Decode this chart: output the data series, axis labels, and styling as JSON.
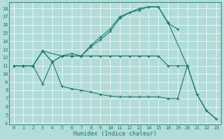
{
  "xlabel": "Humidex (Indice chaleur)",
  "bg_color": "#b2dcd9",
  "line_color": "#1a7a6e",
  "grid_color": "#ffffff",
  "curves": [
    {
      "x": [
        0,
        1,
        2,
        3,
        5,
        6,
        7,
        8,
        9,
        10,
        11,
        12,
        13,
        14,
        15,
        18,
        19
      ],
      "y": [
        11,
        11,
        11,
        12.8,
        12.2,
        12.5,
        12.2,
        13.5,
        14.5,
        15.5,
        17.0,
        17.5,
        18.0,
        18.2,
        18.2,
        16.2,
        15.5
      ]
    },
    {
      "x": [
        0,
        1,
        2,
        3,
        4,
        5,
        6,
        7,
        8,
        9,
        10,
        11,
        12,
        13,
        14,
        15,
        18,
        20
      ],
      "y": [
        11,
        11,
        11,
        12.8,
        11.5,
        12.2,
        12.2,
        12.2,
        13.3,
        14.2,
        15.2,
        16.8,
        17.5,
        17.8,
        18.2,
        18.2,
        16.3,
        11.0
      ]
    },
    {
      "x": [
        0,
        1,
        2,
        3,
        4,
        5,
        6,
        7,
        8,
        9,
        10,
        11,
        12,
        13,
        14,
        15,
        18,
        19,
        20,
        21,
        22,
        23
      ],
      "y": [
        11,
        11,
        11,
        12.8,
        11.5,
        12.2,
        12.2,
        12.2,
        12.2,
        12.2,
        12.2,
        12.2,
        12.2,
        12.2,
        12.2,
        12.2,
        11.0,
        11.0,
        11.0,
        7.5,
        5.5,
        4.5
      ]
    },
    {
      "x": [
        0,
        1,
        2,
        3,
        4,
        5,
        6,
        7,
        8,
        9,
        10,
        11,
        12,
        13,
        14,
        15,
        18,
        19,
        20,
        21,
        22,
        23
      ],
      "y": [
        11,
        11,
        11,
        8.8,
        11.5,
        8.5,
        8.2,
        8.0,
        7.8,
        7.5,
        7.3,
        7.2,
        7.2,
        7.2,
        7.2,
        7.2,
        7.0,
        7.0,
        11.0,
        7.5,
        5.5,
        4.5
      ]
    }
  ],
  "xticks": [
    0,
    1,
    2,
    3,
    4,
    5,
    6,
    7,
    8,
    9,
    10,
    11,
    12,
    13,
    14,
    15,
    18,
    19,
    20,
    21,
    22,
    23
  ],
  "yticks": [
    4,
    5,
    6,
    7,
    8,
    9,
    10,
    11,
    12,
    13,
    14,
    15,
    16,
    17,
    18
  ],
  "xlim": [
    -0.5,
    23.5
  ],
  "ylim": [
    3.8,
    18.8
  ]
}
